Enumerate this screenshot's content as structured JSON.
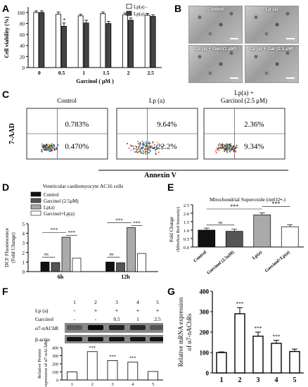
{
  "panels": {
    "A": "A",
    "B": "B",
    "C": "C",
    "D": "D",
    "E": "E",
    "F": "F",
    "G": "G"
  },
  "A": {
    "chart_data": {
      "type": "bar",
      "categories": [
        "0",
        "0.5",
        "1",
        "1.5",
        "2",
        "2.5"
      ],
      "series": [
        {
          "name": "Lp(a) -",
          "values": [
            100,
            97,
            94,
            98,
            96,
            95
          ]
        },
        {
          "name": "Lp(a) +",
          "values": [
            100,
            75,
            81,
            80,
            86,
            93
          ]
        }
      ],
      "errors": [
        [
          3,
          4,
          3,
          3,
          3,
          3
        ],
        [
          3,
          6,
          5,
          4,
          4,
          3
        ]
      ],
      "ylabel": "Cell viability (%)",
      "xlabel": "Garcinol ( μM )",
      "yticks": [
        "0",
        "20",
        "40",
        "60",
        "80",
        "100"
      ],
      "ylim": [
        0,
        110
      ],
      "annotation": "*"
    }
  },
  "B": {
    "images": [
      {
        "label": "Control"
      },
      {
        "label": "Lp (a)"
      },
      {
        "label": "Lp (a) + Garc(1 μM)"
      },
      {
        "label": "Lp (a) + Gar (2.5 μM)"
      }
    ]
  },
  "C": {
    "titles": [
      "Control",
      "Lp (a)",
      "Lp(a) +\nGarcinol (2.5 μM)"
    ],
    "title3_line1": "Lp(a) +",
    "title3_line2": "Garcinol (2.5 μM)",
    "ylabel": "7-AAD",
    "xlabel": "Annexin V",
    "plots": [
      {
        "upper": "0.783%",
        "lower": "0.470%"
      },
      {
        "upper": "9.64%",
        "lower": "22.2%"
      },
      {
        "upper": "2.36%",
        "lower": "9.34%"
      }
    ]
  },
  "D": {
    "chart_data": {
      "type": "bar",
      "title": "Ventricular cardiomyocyte AC16 cells",
      "categories": [
        "6h",
        "12h"
      ],
      "series": [
        {
          "name": "Control",
          "values": [
            1.0,
            1.0
          ]
        },
        {
          "name": "Garcinol (2.5μM)",
          "values": [
            0.95,
            0.92
          ]
        },
        {
          "name": "Lp(a)",
          "values": [
            3.6,
            4.6
          ]
        },
        {
          "name": "Garcinol+Lp(a)",
          "values": [
            1.4,
            1.9
          ]
        }
      ],
      "ylabel": "DCF Fluorescence",
      "ylabel2": "(Fold Change)",
      "yticks": [
        "0",
        "1",
        "2",
        "3",
        "4",
        "5"
      ],
      "ylim": [
        0,
        5
      ],
      "sig_ns": "ns",
      "sig_star": "***"
    }
  },
  "E": {
    "chart_data": {
      "type": "bar",
      "title": "Mitochondrial Superoxide (mtO2•-)",
      "categories": [
        "Control",
        "Garcinol (2.5uM)",
        "Lp(a)",
        "Garcinol+Lp(a)"
      ],
      "values": [
        1.0,
        0.93,
        1.9,
        1.2
      ],
      "colors": [
        "#111111",
        "#555555",
        "#aaaaaa",
        "#ffffff"
      ],
      "ylabel": "Fold Change",
      "ylabel2": "(MitoSox Red Intensity)",
      "yticks": [
        "0.0",
        "0.5",
        "1.0",
        "1.5",
        "2.0",
        "2.5"
      ],
      "ylim": [
        0,
        2.5
      ],
      "sig_ns": "ns",
      "sig_star": "***"
    }
  },
  "F": {
    "blot": {
      "lanes": [
        "1",
        "2",
        "3",
        "4",
        "5"
      ],
      "lp_label": "Lp (a)",
      "lp": [
        "-",
        "+",
        "+",
        "+",
        "+"
      ],
      "garc_label": "Garcinol",
      "garc": [
        "-",
        "-",
        "0.5",
        "1",
        "2.5"
      ],
      "row1": "α7-nAChR",
      "row2": "β-actin"
    },
    "chart_data": {
      "type": "bar",
      "categories": [
        "1",
        "2",
        "3",
        "4",
        "5"
      ],
      "values": [
        100,
        350,
        240,
        220,
        105
      ],
      "ylabel": "Relative Protein",
      "ylabel2": "expression of α7-nAChRs",
      "yticks": [
        "0",
        "100",
        "200",
        "300",
        "400"
      ],
      "ylim": [
        0,
        400
      ],
      "sig": [
        "",
        "***",
        "***",
        "***",
        ""
      ]
    }
  },
  "G": {
    "chart_data": {
      "type": "bar",
      "categories": [
        "1",
        "2",
        "3",
        "4",
        "5"
      ],
      "values": [
        100,
        290,
        180,
        145,
        105
      ],
      "errors": [
        3,
        30,
        20,
        15,
        12
      ],
      "ylabel": "Relative mRNA expression",
      "ylabel2": "of α7-nAChRs",
      "yticks": [
        "0",
        "100",
        "200",
        "300",
        "400"
      ],
      "ylim": [
        0,
        400
      ],
      "sig": [
        "",
        "***",
        "***",
        "***",
        ""
      ]
    }
  }
}
